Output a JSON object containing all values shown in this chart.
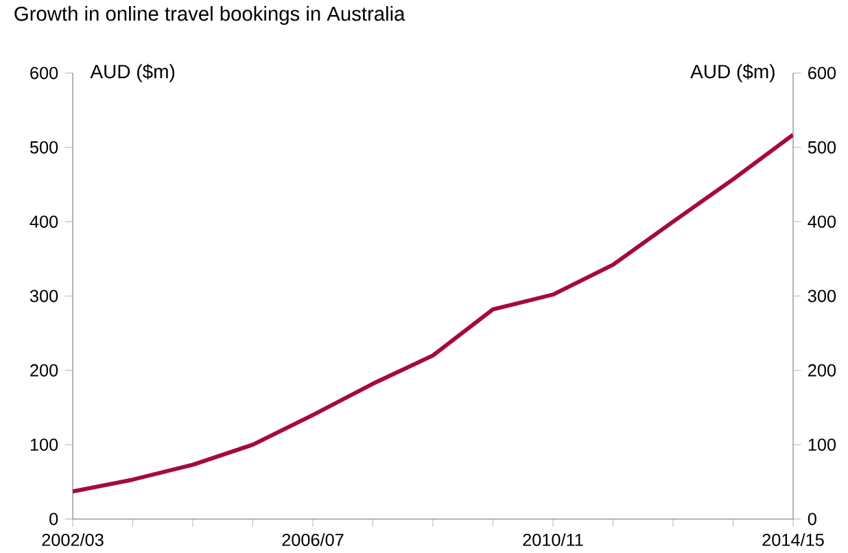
{
  "chart_data": {
    "type": "line",
    "title": "Growth in online travel bookings in Australia",
    "ylabel": "AUD ($m)",
    "y2label": "AUD ($m)",
    "categories": [
      "2002/03",
      null,
      null,
      null,
      "2006/07",
      null,
      null,
      null,
      "2010/11",
      null,
      null,
      null,
      "2014/15"
    ],
    "series": [
      {
        "color": "#a6093d",
        "values": [
          37,
          53,
          73,
          100,
          140,
          182,
          220,
          282,
          302,
          342,
          400,
          457,
          517
        ]
      }
    ],
    "ylim": [
      0,
      600
    ],
    "yticks": [
      0,
      100,
      200,
      300,
      400,
      500,
      600
    ],
    "y2lim": [
      0,
      600
    ],
    "y2ticks": [
      0,
      100,
      200,
      300,
      400,
      500,
      600
    ],
    "marker": "none",
    "line_style": "solid"
  }
}
